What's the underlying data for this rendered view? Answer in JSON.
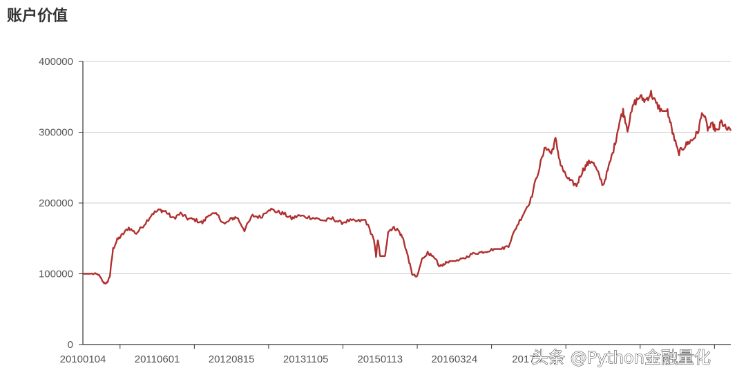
{
  "chart_data": {
    "type": "line",
    "title": "账户价值",
    "xlabel": "",
    "ylabel": "",
    "ylim": [
      0,
      400000
    ],
    "y_ticks": [
      0,
      100000,
      200000,
      300000,
      400000
    ],
    "x_tick_labels": [
      "20100104",
      "20110601",
      "20120815",
      "20131105",
      "20150113",
      "20160324",
      "2017…",
      "…",
      "…"
    ],
    "grid": "horizontal",
    "legend": "none",
    "series": [
      {
        "color": "#b03030",
        "x": [
          "2010-01-04",
          "2010-03-01",
          "2010-04-10",
          "2010-05-10",
          "2010-06-01",
          "2010-06-20",
          "2010-07-10",
          "2010-08-05",
          "2010-09-05",
          "2010-10-15",
          "2010-12-01",
          "2011-01-20",
          "2011-03-10",
          "2011-04-25",
          "2011-06-01",
          "2011-07-15",
          "2011-09-01",
          "2011-10-15",
          "2011-12-01",
          "2012-01-15",
          "2012-03-01",
          "2012-04-15",
          "2012-06-01",
          "2012-07-15",
          "2012-08-15",
          "2012-10-01",
          "2012-11-20",
          "2013-01-10",
          "2013-03-01",
          "2013-04-15",
          "2013-06-01",
          "2013-07-20",
          "2013-09-01",
          "2013-11-05",
          "2013-12-20",
          "2014-02-10",
          "2014-04-01",
          "2014-05-20",
          "2014-07-10",
          "2014-09-01",
          "2014-10-20",
          "2014-12-10",
          "2014-12-25",
          "2015-01-05",
          "2015-01-20",
          "2015-02-05",
          "2015-02-20",
          "2015-03-10",
          "2015-04-10",
          "2015-05-10",
          "2015-06-10",
          "2015-07-10",
          "2015-08-05",
          "2015-09-05",
          "2015-10-05",
          "2015-11-10",
          "2015-12-01",
          "2016-01-05",
          "2016-01-20",
          "2016-02-20",
          "2016-03-24",
          "2016-05-10",
          "2016-06-25",
          "2016-08-10",
          "2016-09-25",
          "2016-11-10",
          "2016-12-25",
          "2017-02-10",
          "2017-03-25",
          "2017-05-10",
          "2017-06-25",
          "2017-08-10",
          "2017-09-25",
          "2017-11-10",
          "2017-12-15",
          "2018-01-10",
          "2018-02-10",
          "2018-03-10",
          "2018-04-15",
          "2018-05-20",
          "2018-06-25",
          "2018-07-25",
          "2018-08-25",
          "2018-09-25",
          "2018-11-01",
          "2018-12-05",
          "2019-01-10",
          "2019-02-10",
          "2019-03-05",
          "2019-04-01",
          "2019-05-10",
          "2019-06-15",
          "2019-07-20",
          "2019-08-25",
          "2019-09-25",
          "2019-11-01",
          "2019-12-05",
          "2020-01-05",
          "2020-02-10",
          "2020-03-10",
          "2020-04-10",
          "2020-05-10",
          "2020-06-10",
          "2020-07-10",
          "2020-08-10",
          "2020-09-10",
          "2020-10-10",
          "2020-11-01",
          "2020-12-01",
          "2020-12-31"
        ],
        "values": [
          100000,
          100000,
          99000,
          88000,
          86000,
          97000,
          135000,
          148000,
          155000,
          165000,
          157000,
          170000,
          185000,
          190000,
          188000,
          178000,
          185000,
          178000,
          176000,
          172000,
          185000,
          183000,
          170000,
          178000,
          180000,
          162000,
          182000,
          180000,
          192000,
          188000,
          185000,
          178000,
          182000,
          180000,
          178000,
          175000,
          178000,
          172000,
          175000,
          174000,
          176000,
          150000,
          125000,
          148000,
          125000,
          125000,
          125000,
          160000,
          165000,
          162000,
          150000,
          125000,
          100000,
          95000,
          120000,
          130000,
          126000,
          118000,
          110000,
          114000,
          118000,
          118000,
          122000,
          128000,
          130000,
          132000,
          135000,
          135000,
          140000,
          165000,
          185000,
          205000,
          245000,
          280000,
          270000,
          290000,
          255000,
          240000,
          230000,
          225000,
          245000,
          255000,
          260000,
          245000,
          225000,
          250000,
          280000,
          315000,
          330000,
          305000,
          340000,
          350000,
          345000,
          355000,
          340000,
          330000,
          330000,
          300000,
          270000,
          278000,
          285000,
          290000,
          300000,
          330000,
          305000,
          310000,
          300000,
          315000,
          305000,
          302000
        ]
      }
    ]
  },
  "watermark": "头条 @Python金融量化"
}
